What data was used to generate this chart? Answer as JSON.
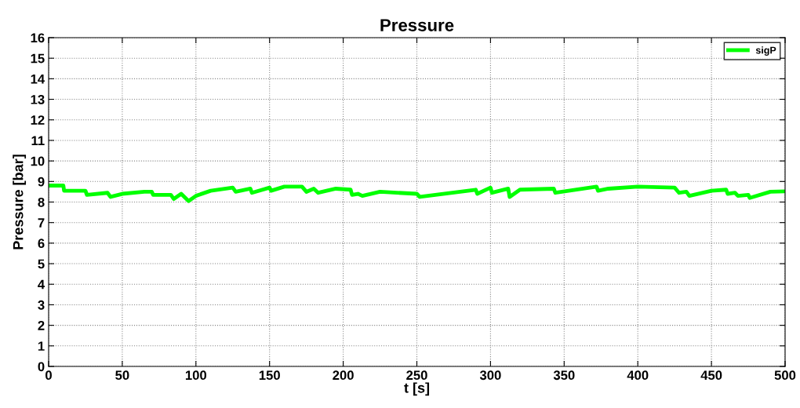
{
  "chart_data": {
    "type": "line",
    "title": "Pressure",
    "xlabel": "t [s]",
    "ylabel": "Pressure [bar]",
    "xlim": [
      0,
      500
    ],
    "xticks": [
      0,
      50,
      100,
      150,
      200,
      250,
      300,
      350,
      400,
      450,
      500
    ],
    "ylim": [
      0,
      16
    ],
    "yticks": [
      0,
      1,
      2,
      3,
      4,
      5,
      6,
      7,
      8,
      9,
      10,
      11,
      12,
      13,
      14,
      15,
      16
    ],
    "grid": true,
    "legend": "top right",
    "line_style": "solid",
    "marker": "none",
    "series": [
      {
        "name": "sigP",
        "color": "#00ff00",
        "x": [
          0,
          10,
          10.5,
          25,
          26,
          40,
          42,
          50,
          65,
          70,
          71,
          83,
          85,
          90,
          95,
          100,
          110,
          125,
          127,
          137,
          138,
          150,
          151,
          160,
          172,
          175,
          180,
          183,
          195,
          205,
          206,
          210,
          213,
          225,
          250,
          252,
          290,
          291,
          300,
          301,
          312,
          313,
          320,
          343,
          344,
          372,
          373,
          380,
          400,
          425,
          428,
          433,
          435,
          450,
          460,
          461,
          466,
          468,
          475,
          476,
          490,
          500
        ],
        "values": [
          8.8,
          8.8,
          8.55,
          8.55,
          8.35,
          8.45,
          8.25,
          8.4,
          8.5,
          8.5,
          8.35,
          8.35,
          8.15,
          8.4,
          8.05,
          8.3,
          8.55,
          8.7,
          8.5,
          8.65,
          8.45,
          8.7,
          8.55,
          8.75,
          8.75,
          8.5,
          8.65,
          8.45,
          8.65,
          8.6,
          8.35,
          8.4,
          8.3,
          8.5,
          8.4,
          8.25,
          8.6,
          8.4,
          8.7,
          8.45,
          8.65,
          8.25,
          8.6,
          8.65,
          8.45,
          8.75,
          8.55,
          8.65,
          8.75,
          8.7,
          8.45,
          8.5,
          8.3,
          8.55,
          8.6,
          8.4,
          8.45,
          8.3,
          8.35,
          8.2,
          8.5,
          8.52
        ]
      }
    ]
  }
}
